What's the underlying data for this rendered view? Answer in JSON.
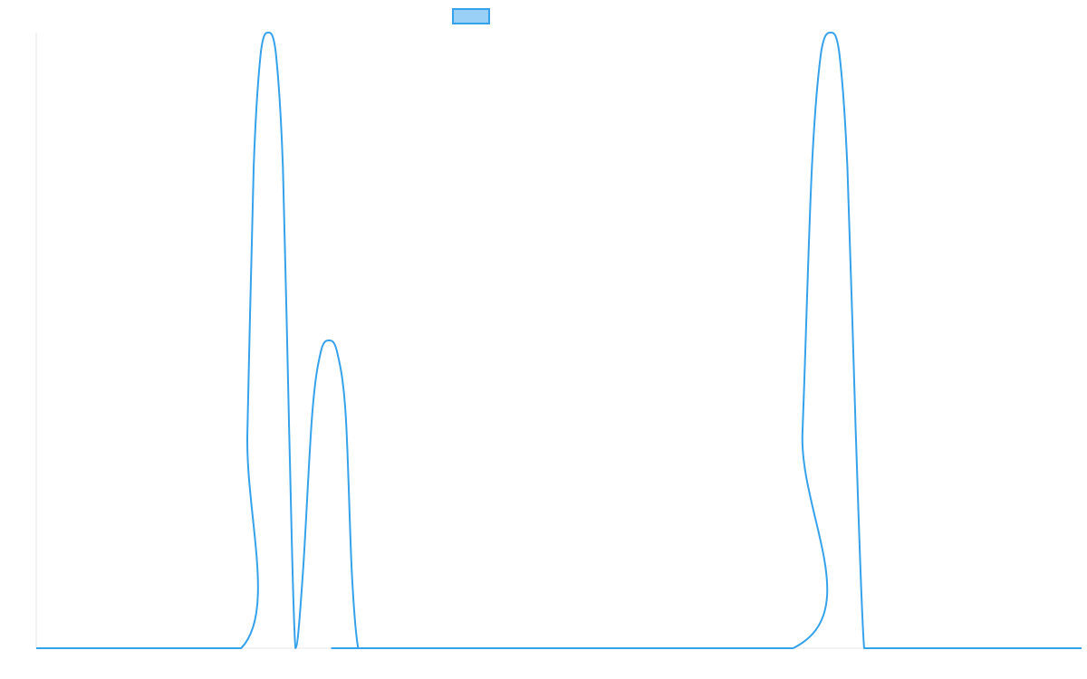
{
  "chart_data": {
    "type": "line",
    "title": "",
    "xlabel": "",
    "ylabel": "",
    "xlim": [
      0,
      100
    ],
    "ylim": [
      0,
      1
    ],
    "grid": false,
    "legend": {
      "placement": "top-center",
      "entries": [
        {
          "name": "",
          "color": "#36a2eb",
          "fill": "#9ad0f5"
        }
      ]
    },
    "series": [
      {
        "name": "",
        "color": "#36a2eb",
        "x": [
          0,
          19.6,
          20.2,
          20.8,
          21.5,
          22.2,
          22.9,
          23.6,
          24.2,
          24.8,
          25.5,
          26.4,
          27.2,
          28.0,
          28.8,
          29.6,
          30.2,
          30.8,
          31.5,
          72.4,
          73.3,
          74.2,
          75.1,
          76.0,
          76.8,
          77.6,
          78.4,
          79.2,
          80.0,
          81.0,
          100
        ],
        "y": [
          0,
          0,
          0.35,
          0.78,
          0.97,
          1.0,
          0.97,
          0.78,
          0.35,
          0,
          0.12,
          0.38,
          0.48,
          0.5,
          0.48,
          0.38,
          0.12,
          0,
          0,
          0,
          0.35,
          0.78,
          0.97,
          1.0,
          0.97,
          0.78,
          0.35,
          0,
          0,
          0,
          0
        ]
      }
    ]
  }
}
